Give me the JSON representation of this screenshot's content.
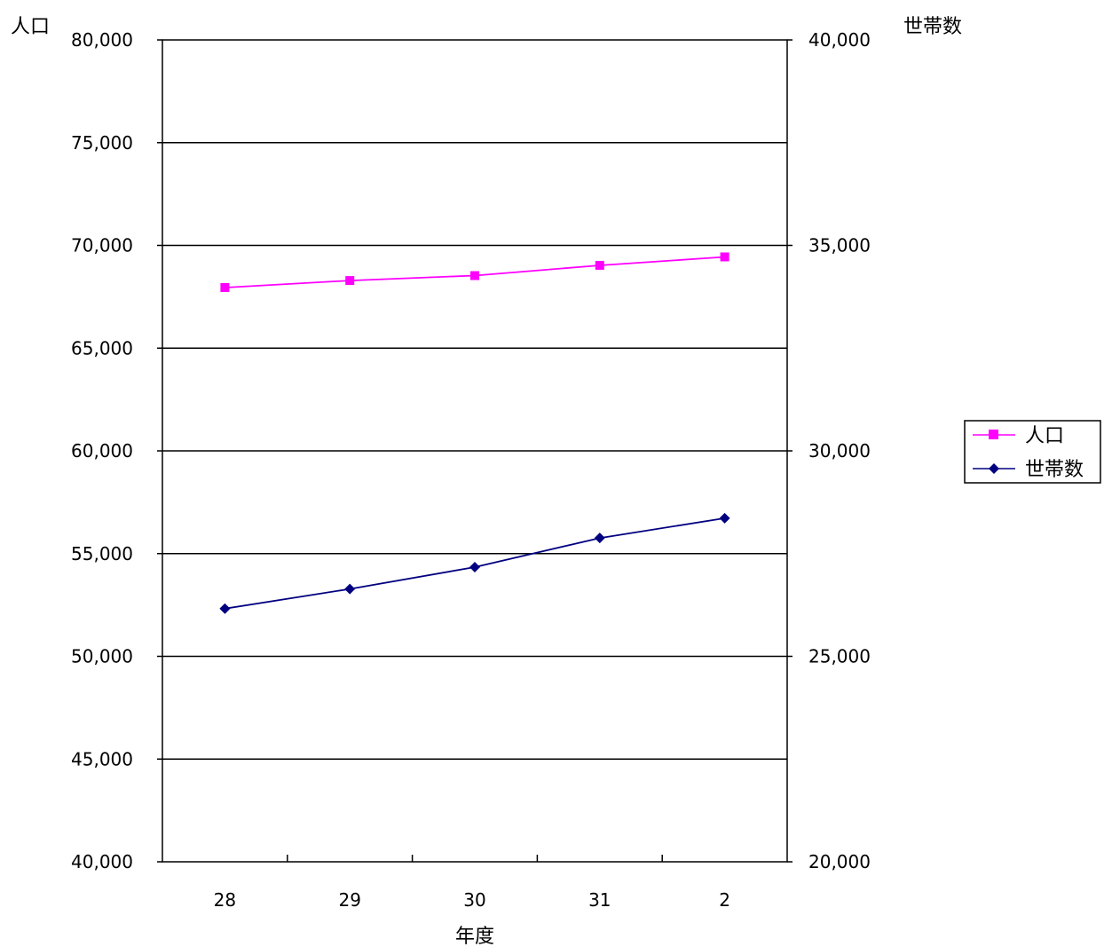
{
  "chart_data": {
    "type": "line",
    "categories": [
      "28",
      "29",
      "30",
      "31",
      "2"
    ],
    "xlabel": "年度",
    "ylabel_left": "人口",
    "ylabel_right": "世帯数",
    "ylim_left": [
      40000,
      80000
    ],
    "ylim_right": [
      20000,
      40000
    ],
    "yticks_left": [
      "40,000",
      "45,000",
      "50,000",
      "55,000",
      "60,000",
      "65,000",
      "70,000",
      "75,000",
      "80,000"
    ],
    "yticks_right": [
      "20,000",
      "25,000",
      "30,000",
      "35,000",
      "40,000"
    ],
    "grid": true,
    "legend_position": "right",
    "series": [
      {
        "name": "人口",
        "axis": "left",
        "color": "#ff00ff",
        "marker": "square",
        "values": [
          67950,
          68290,
          68530,
          69030,
          69440
        ]
      },
      {
        "name": "世帯数",
        "axis": "right",
        "color": "#000080",
        "marker": "diamond",
        "values": [
          26160,
          26640,
          27170,
          27880,
          28360
        ]
      }
    ]
  }
}
